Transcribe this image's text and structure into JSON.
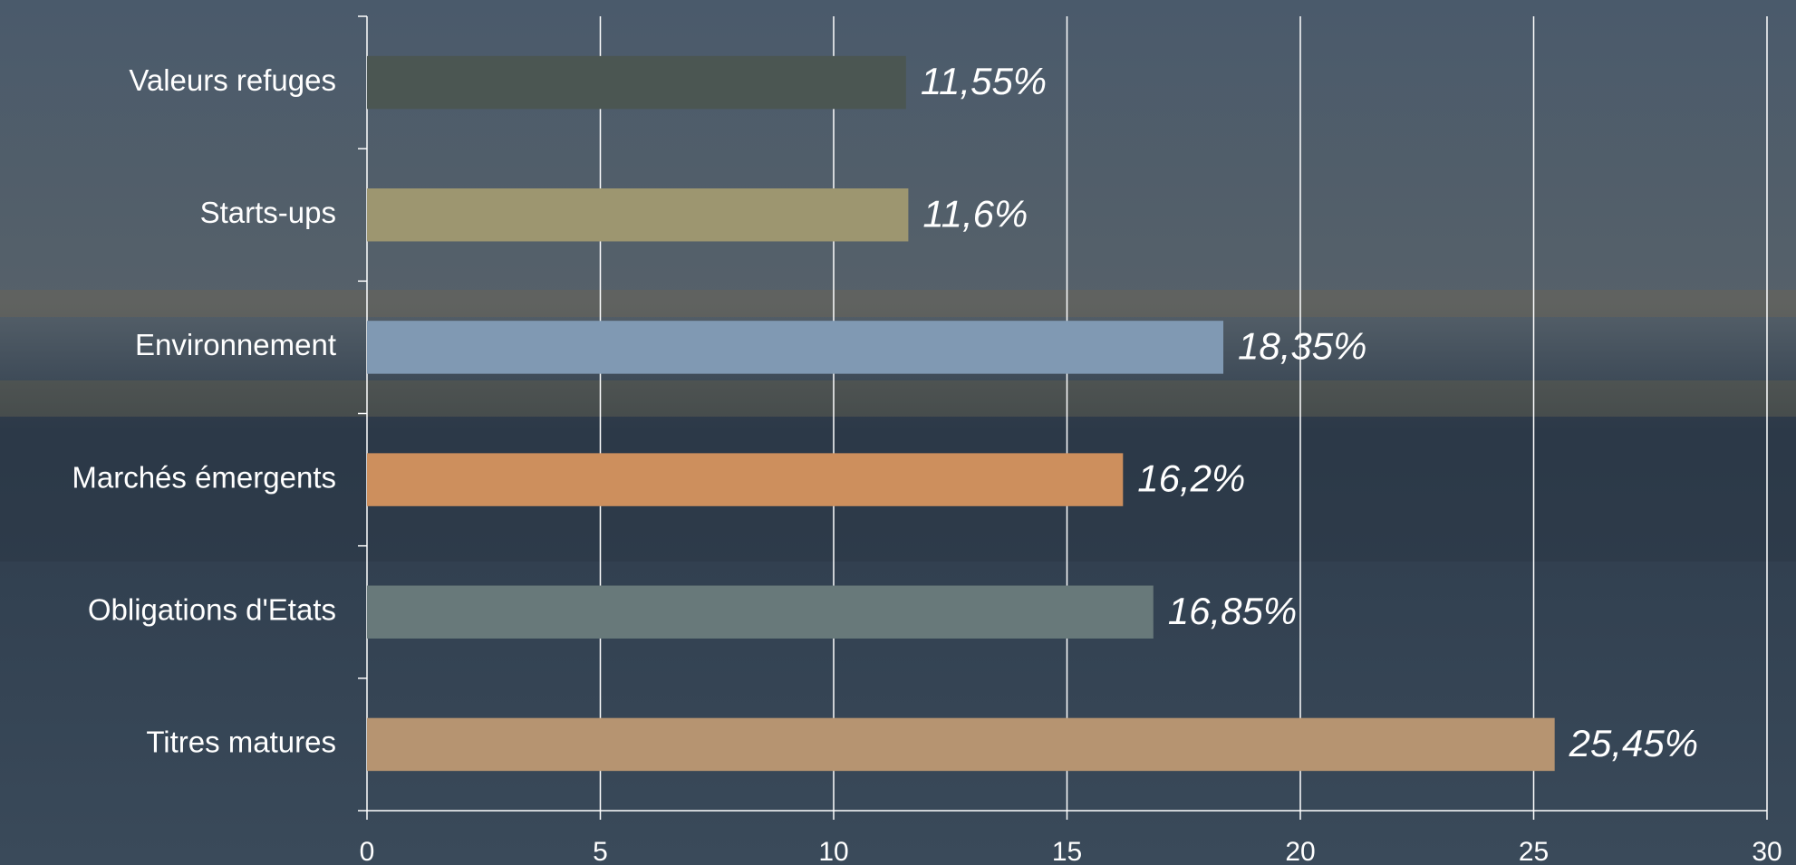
{
  "chart_data": {
    "type": "bar",
    "orientation": "horizontal",
    "categories": [
      "Valeurs refuges",
      "Starts-ups",
      "Environnement",
      "Marchés émergents",
      "Obligations d'Etats",
      "Titres matures"
    ],
    "values": [
      11.55,
      11.6,
      18.35,
      16.2,
      16.85,
      25.45
    ],
    "value_labels": [
      "11,55%",
      "11,6%",
      "18,35%",
      "16,2%",
      "16,85%",
      "25,45%"
    ],
    "colors": [
      "#4b5652",
      "#9d9670",
      "#8099b3",
      "#cd8f5d",
      "#68797a",
      "#b69471"
    ],
    "xlim": [
      0,
      30
    ],
    "xticks": [
      0,
      5,
      10,
      15,
      20,
      25,
      30
    ],
    "grid": true
  }
}
